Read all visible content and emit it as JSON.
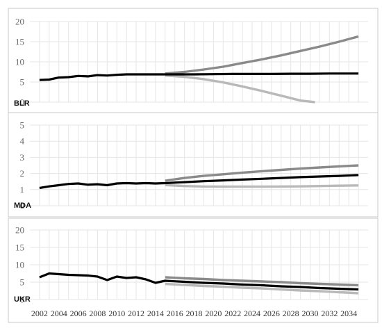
{
  "colors": {
    "observed": "#000000",
    "upper": "#8a8a8a",
    "lower": "#b9b9b9",
    "grid": "#e6e6e6",
    "frame": "#c8c8c8"
  },
  "chart_data": [
    {
      "type": "line",
      "label": "BLR",
      "ylim": [
        0,
        20
      ],
      "yticks": [
        "0",
        "5",
        "10",
        "15",
        "20"
      ],
      "grid": true,
      "series": [
        {
          "style": "observed",
          "x": [
            2002,
            2003,
            2004,
            2005,
            2006,
            2007,
            2008,
            2009,
            2010,
            2011,
            2012,
            2013,
            2014,
            2015,
            2016,
            2018,
            2020,
            2022,
            2024,
            2026,
            2028,
            2030,
            2032,
            2034,
            2035
          ],
          "values": [
            5.5,
            5.6,
            6.1,
            6.2,
            6.5,
            6.4,
            6.7,
            6.6,
            6.8,
            6.9,
            6.9,
            6.9,
            6.9,
            6.9,
            6.9,
            6.9,
            6.95,
            7.0,
            7.0,
            7.0,
            7.05,
            7.05,
            7.1,
            7.1,
            7.1
          ]
        },
        {
          "style": "upper",
          "x": [
            2015,
            2017,
            2019,
            2021,
            2023,
            2025,
            2027,
            2029,
            2031,
            2033,
            2035
          ],
          "values": [
            7.1,
            7.5,
            8.1,
            8.8,
            9.7,
            10.6,
            11.6,
            12.7,
            13.8,
            15.0,
            16.3
          ]
        },
        {
          "style": "lower",
          "x": [
            2015,
            2017,
            2019,
            2021,
            2023,
            2025,
            2027,
            2029,
            2030.5
          ],
          "values": [
            6.6,
            6.3,
            5.7,
            4.9,
            3.9,
            2.8,
            1.6,
            0.4,
            0
          ]
        }
      ]
    },
    {
      "type": "line",
      "label": "MDA",
      "ylim": [
        0,
        5
      ],
      "yticks": [
        "0",
        "1",
        "2",
        "3",
        "4",
        "5"
      ],
      "grid": true,
      "series": [
        {
          "style": "observed",
          "x": [
            2002,
            2003,
            2004,
            2005,
            2006,
            2007,
            2008,
            2009,
            2010,
            2011,
            2012,
            2013,
            2014,
            2015,
            2017,
            2019,
            2021,
            2023,
            2025,
            2027,
            2029,
            2031,
            2033,
            2035
          ],
          "values": [
            1.1,
            1.2,
            1.27,
            1.35,
            1.38,
            1.3,
            1.33,
            1.27,
            1.38,
            1.4,
            1.38,
            1.4,
            1.38,
            1.4,
            1.46,
            1.52,
            1.57,
            1.62,
            1.67,
            1.72,
            1.77,
            1.81,
            1.85,
            1.9
          ]
        },
        {
          "style": "upper",
          "x": [
            2015,
            2017,
            2019,
            2021,
            2023,
            2025,
            2027,
            2029,
            2031,
            2033,
            2035
          ],
          "values": [
            1.55,
            1.72,
            1.85,
            1.95,
            2.05,
            2.14,
            2.22,
            2.3,
            2.37,
            2.44,
            2.5
          ]
        },
        {
          "style": "lower",
          "x": [
            2015,
            2017,
            2019,
            2021,
            2023,
            2025,
            2027,
            2029,
            2031,
            2033,
            2035
          ],
          "values": [
            1.28,
            1.22,
            1.19,
            1.18,
            1.18,
            1.18,
            1.19,
            1.2,
            1.22,
            1.24,
            1.26
          ]
        }
      ]
    },
    {
      "type": "line",
      "label": "UKR",
      "ylim": [
        0,
        20
      ],
      "yticks": [
        "0",
        "5",
        "10",
        "15",
        "20"
      ],
      "xticks": [
        "2002",
        "2004",
        "2006",
        "2008",
        "2010",
        "2012",
        "2014",
        "2016",
        "2018",
        "2020",
        "2022",
        "2024",
        "2026",
        "2028",
        "2030",
        "2032",
        "2034"
      ],
      "grid": true,
      "series": [
        {
          "style": "observed",
          "x": [
            2002,
            2003,
            2004,
            2005,
            2006,
            2007,
            2008,
            2009,
            2010,
            2011,
            2012,
            2013,
            2014,
            2015,
            2017,
            2019,
            2021,
            2023,
            2025,
            2027,
            2029,
            2031,
            2033,
            2035
          ],
          "values": [
            6.4,
            7.5,
            7.3,
            7.1,
            7.0,
            6.9,
            6.6,
            5.6,
            6.6,
            6.2,
            6.4,
            5.8,
            4.8,
            5.4,
            5.1,
            4.8,
            4.6,
            4.3,
            4.1,
            3.8,
            3.6,
            3.3,
            3.1,
            2.9
          ]
        },
        {
          "style": "upper",
          "x": [
            2015,
            2017,
            2019,
            2021,
            2023,
            2025,
            2027,
            2029,
            2031,
            2033,
            2035
          ],
          "values": [
            6.4,
            6.1,
            5.9,
            5.6,
            5.4,
            5.2,
            5.0,
            4.7,
            4.5,
            4.3,
            4.1
          ]
        },
        {
          "style": "lower",
          "x": [
            2015,
            2017,
            2019,
            2021,
            2023,
            2025,
            2027,
            2029,
            2031,
            2033,
            2035
          ],
          "values": [
            4.5,
            4.2,
            3.9,
            3.7,
            3.4,
            3.2,
            2.9,
            2.6,
            2.4,
            2.1,
            1.8
          ]
        }
      ]
    }
  ]
}
